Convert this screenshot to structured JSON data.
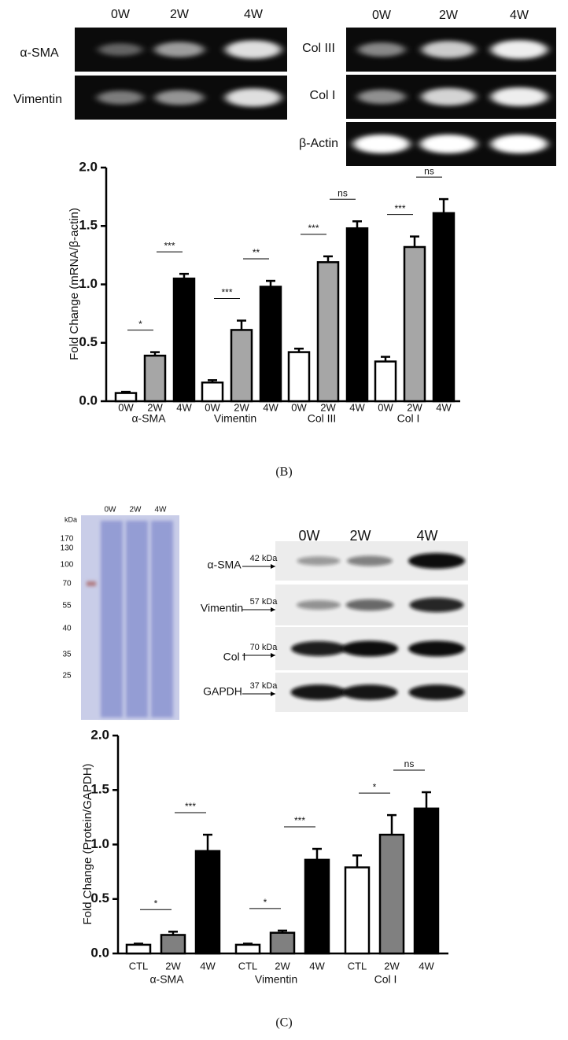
{
  "blots_b": {
    "left": {
      "columns": [
        "0W",
        "2W",
        "4W"
      ],
      "rows": [
        "α-SMA",
        "Vimentin"
      ]
    },
    "right": {
      "columns": [
        "0W",
        "2W",
        "4W"
      ],
      "rows": [
        "Col III",
        "Col I",
        "β-Actin"
      ]
    }
  },
  "caption_b": "(B)",
  "gel_c": {
    "unit": "kDa",
    "markers": [
      170,
      130,
      100,
      70,
      55,
      40,
      35,
      25
    ],
    "columns": [
      "0W",
      "2W",
      "4W"
    ]
  },
  "blot_c": {
    "columns": [
      "0W",
      "2W",
      "4W"
    ],
    "rows": [
      {
        "label": "α-SMA",
        "size": "42 kDa"
      },
      {
        "label": "Vimentin",
        "size": "57 kDa"
      },
      {
        "label": "Col I",
        "size": "70 kDa"
      },
      {
        "label": "GAPDH",
        "size": "37 kDa"
      }
    ]
  },
  "caption_c": "(C)",
  "chart_data": [
    {
      "type": "bar",
      "y_label": "Fold Change (mRNA/β-actin)",
      "categories": [
        "α-SMA",
        "Vimentin",
        "Col III",
        "Col I"
      ],
      "series": [
        {
          "name": "0W",
          "color": "#ffffff",
          "values": [
            0.07,
            0.16,
            0.42,
            0.34
          ],
          "errors": [
            0.01,
            0.02,
            0.03,
            0.04
          ]
        },
        {
          "name": "2W",
          "color": "#a6a6a6",
          "values": [
            0.39,
            0.61,
            1.19,
            1.32
          ],
          "errors": [
            0.03,
            0.08,
            0.05,
            0.09
          ]
        },
        {
          "name": "4W",
          "color": "#000000",
          "values": [
            1.05,
            0.98,
            1.48,
            1.61
          ],
          "errors": [
            0.04,
            0.05,
            0.06,
            0.12
          ]
        }
      ],
      "significance": [
        [
          "*",
          "***"
        ],
        [
          "***",
          "**"
        ],
        [
          "***",
          "ns"
        ],
        [
          "***",
          "ns"
        ]
      ],
      "ylim": [
        0,
        2
      ],
      "yticks": [
        {
          "value": 0,
          "label": "0.0"
        },
        {
          "value": 0.5,
          "label": "0.5"
        },
        {
          "value": 1,
          "label": "1.0"
        },
        {
          "value": 1.5,
          "label": "1.5"
        },
        {
          "value": 2,
          "label": "2.0"
        }
      ]
    },
    {
      "type": "bar",
      "y_label": "Fold Change (Protein/GAPDH)",
      "categories": [
        "α-SMA",
        "Vimentin",
        "Col I"
      ],
      "series": [
        {
          "name": "CTL",
          "color": "#ffffff",
          "values": [
            0.08,
            0.08,
            0.79
          ],
          "errors": [
            0.01,
            0.01,
            0.11
          ]
        },
        {
          "name": "2W",
          "color": "#808080",
          "values": [
            0.17,
            0.19,
            1.09
          ],
          "errors": [
            0.03,
            0.02,
            0.18
          ]
        },
        {
          "name": "4W",
          "color": "#000000",
          "values": [
            0.94,
            0.86,
            1.33
          ],
          "errors": [
            0.15,
            0.1,
            0.15
          ]
        }
      ],
      "significance": [
        [
          "*",
          "***"
        ],
        [
          "*",
          "***"
        ],
        [
          "*",
          "ns"
        ]
      ],
      "ylim": [
        0,
        2
      ],
      "yticks": [
        {
          "value": 0,
          "label": "0.0"
        },
        {
          "value": 0.5,
          "label": "0.5"
        },
        {
          "value": 1,
          "label": "1.0"
        },
        {
          "value": 1.5,
          "label": "1.5"
        },
        {
          "value": 2,
          "label": "2.0"
        }
      ]
    }
  ]
}
